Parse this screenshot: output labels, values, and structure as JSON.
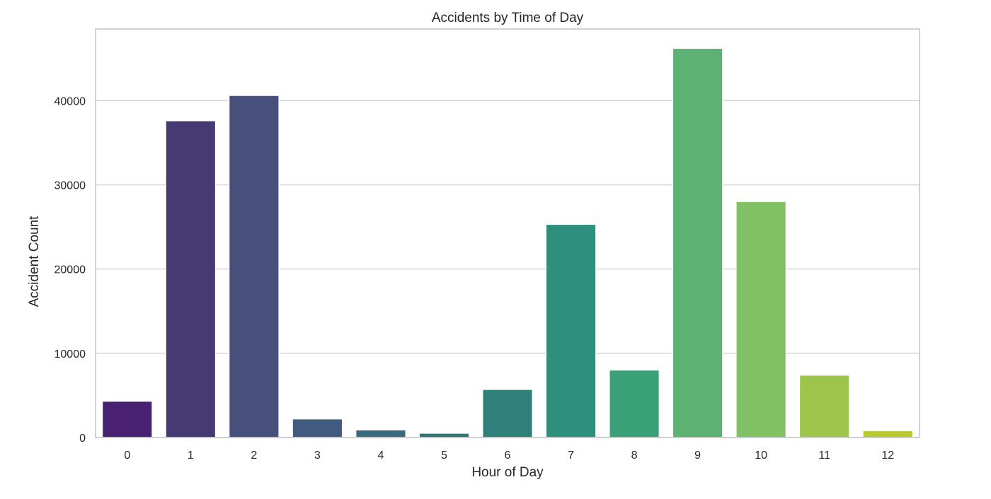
{
  "chart_data": {
    "type": "bar",
    "title": "Accidents by Time of Day",
    "xlabel": "Hour of Day",
    "ylabel": "Accident Count",
    "categories": [
      "0",
      "1",
      "2",
      "3",
      "4",
      "5",
      "6",
      "7",
      "8",
      "9",
      "10",
      "11",
      "12"
    ],
    "values": [
      4300,
      37600,
      40600,
      2200,
      900,
      500,
      5700,
      25300,
      8000,
      46200,
      28000,
      7400,
      800
    ],
    "ylim": [
      0,
      48500
    ],
    "yticks": [
      0,
      10000,
      20000,
      30000,
      40000
    ],
    "ytick_labels": [
      "0",
      "10000",
      "20000",
      "30000",
      "40000"
    ],
    "grid": "horizontal",
    "colors": [
      "#482173",
      "#433e85",
      "#38598c",
      "#2d708e",
      "#25858e",
      "#1e9b8a",
      "#2ab07f",
      "#52c569",
      "#86d549",
      "#c2df23",
      "#f7e620",
      "#d2e21b",
      "#b5de2b"
    ],
    "bar_colors": [
      "#482173",
      "#473a73",
      "#474f7d",
      "#415a80",
      "#396a7f",
      "#2f7577",
      "#2e807b",
      "#2f8f7e",
      "#3aa077",
      "#5bb273",
      "#7fc164",
      "#9dc54b",
      "#b7c92f"
    ],
    "background": "#ffffff",
    "grid_color": "#d6d6d6",
    "frame_color": "#cccccc"
  }
}
